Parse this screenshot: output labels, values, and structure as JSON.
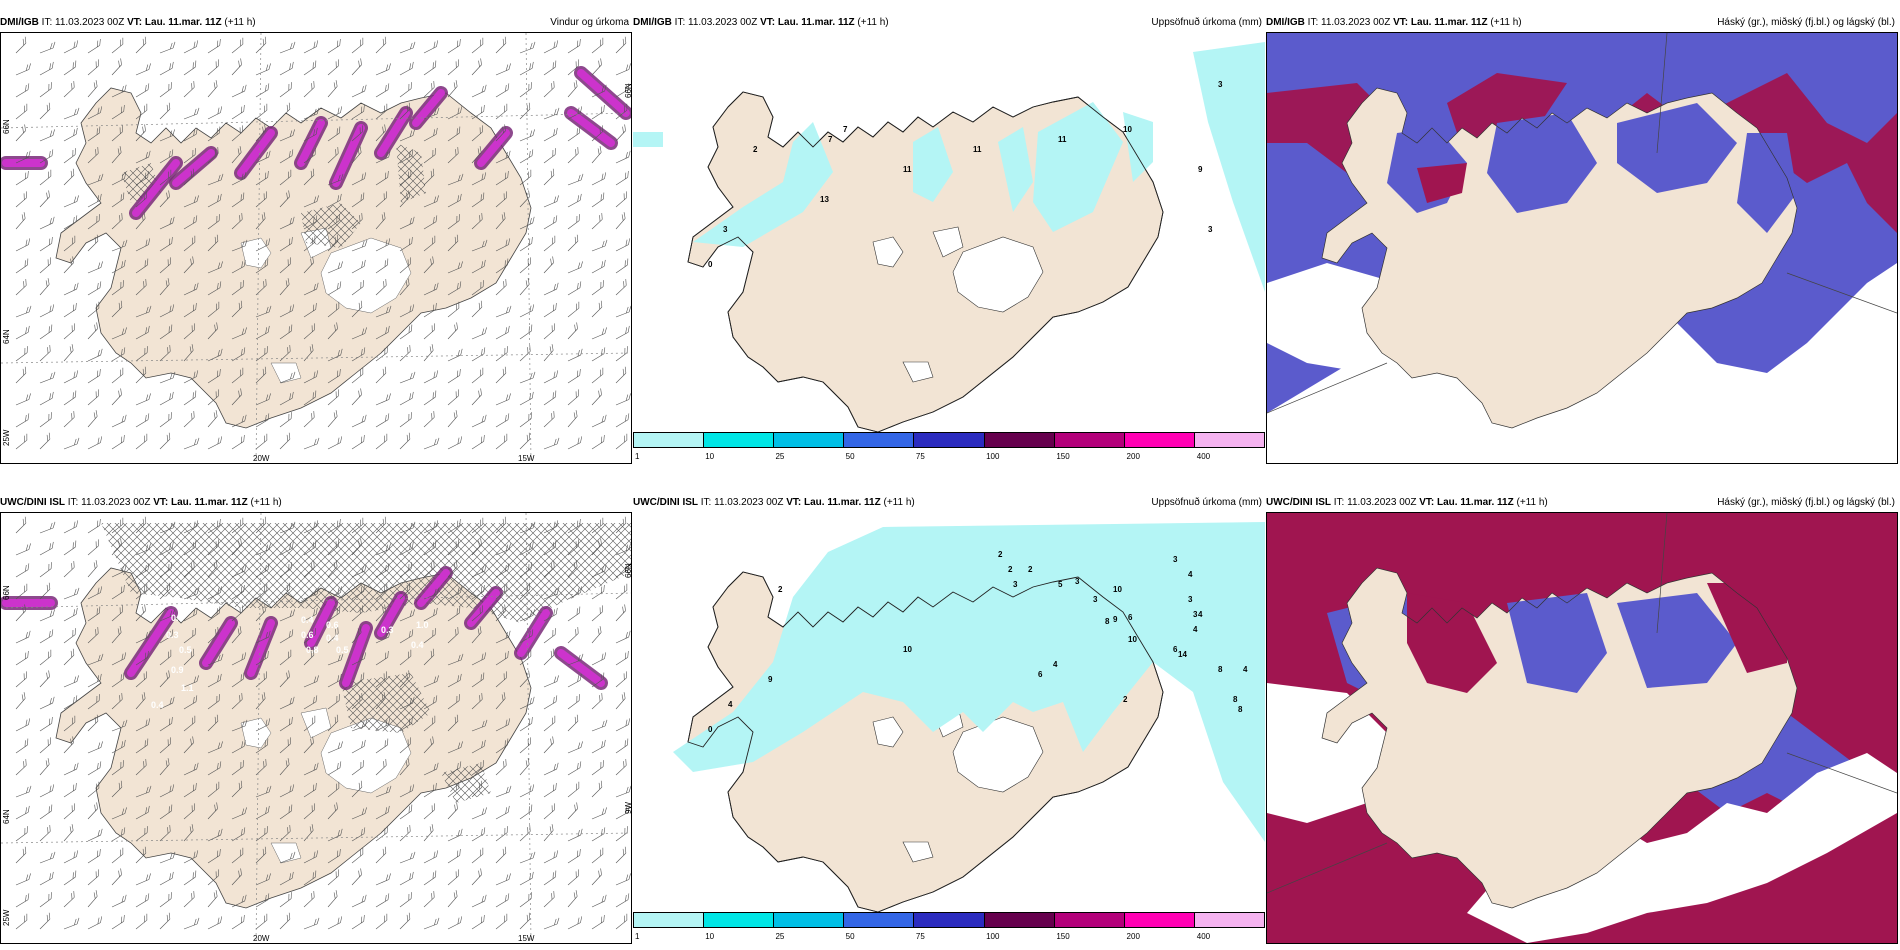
{
  "common": {
    "it_label": "IT:",
    "it_value": "11.03.2023 00Z",
    "vt_label": "VT:",
    "vt_value": "Lau. 11.mar. 11Z",
    "lead": "(+11 h)"
  },
  "rows": [
    {
      "model": "DMI/IGB"
    },
    {
      "model": "UWC/DINI ISL"
    }
  ],
  "panel_titles": {
    "wind": "Vindur og úrkoma",
    "precip": "Uppsöfnuð úrkoma (mm)",
    "clouds": "Háský (gr.), miðský (fj.bl.) og lágský (bl.)"
  },
  "axes": {
    "lon_20w": "20W",
    "lon_15w": "15W",
    "lat_66n": "66N",
    "lat_64n": "64N",
    "lon_25w": "25W",
    "lon_9w": "9W"
  },
  "colorbar": {
    "labels": [
      "1",
      "10",
      "25",
      "50",
      "75",
      "100",
      "150",
      "200",
      "400"
    ],
    "colors": [
      "#b4f5f5",
      "#00e6e6",
      "#00bfe6",
      "#3366e6",
      "#2b2bbf",
      "#66004d",
      "#b3007a",
      "#ff00b3",
      "#f5b3f0"
    ]
  },
  "colors": {
    "land": "#f2e4d4",
    "land_white": "#ffffff",
    "precip_light": "#b4f5f5",
    "high_cloud": "#a01550",
    "mid_cloud": "#5b5bcc",
    "low_cloud_edge": "#3a8ee0",
    "rain_magenta": "#cc33cc",
    "rain_dark": "#7a2a7a"
  },
  "precip_values": {
    "top": [
      "2",
      "3",
      "7",
      "11",
      "11",
      "11",
      "10",
      "9",
      "3",
      "3",
      "13",
      "0",
      "7"
    ],
    "bottom": [
      "2",
      "2",
      "2",
      "3",
      "2",
      "3",
      "3",
      "3",
      "3",
      "4",
      "4",
      "4",
      "5",
      "8",
      "9",
      "10",
      "10",
      "6",
      "6",
      "4",
      "14",
      "8",
      "4",
      "8",
      "8",
      "3",
      "2",
      "4",
      "9",
      "0",
      "10",
      "6"
    ]
  },
  "rain_values_bottom": [
    "0.4",
    "0.3",
    "0.5",
    "0.9",
    "1.1",
    "0.4",
    "0.6",
    "0.4",
    "0.5",
    "0.3",
    "1.0",
    "0.4",
    "0.4",
    "0.6",
    "0.8"
  ]
}
